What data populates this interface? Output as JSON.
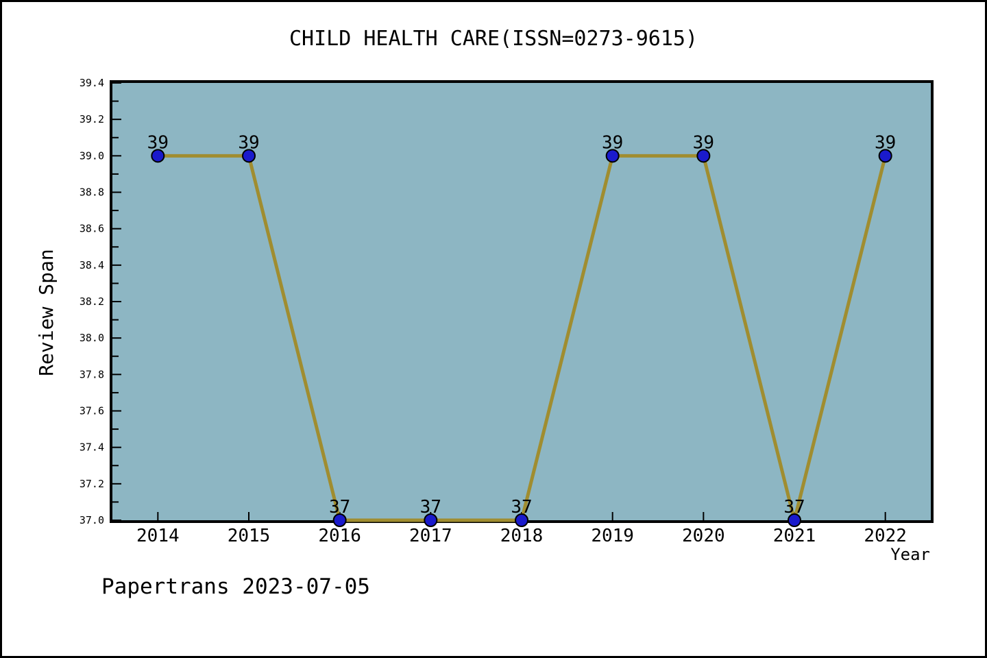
{
  "watermark": "Papertrans 2023-07-05",
  "chart_data": {
    "type": "line",
    "title": "CHILD HEALTH CARE(ISSN=0273-9615)",
    "xlabel": "Year",
    "ylabel": "Review Span",
    "x": [
      2014,
      2015,
      2016,
      2017,
      2018,
      2019,
      2020,
      2021,
      2022
    ],
    "x_tick_labels": [
      "2014",
      "2015",
      "2016",
      "2017",
      "2018",
      "2019",
      "2020",
      "2021",
      "2022"
    ],
    "values": [
      39,
      39,
      37,
      37,
      37,
      39,
      39,
      37,
      39
    ],
    "point_labels": [
      "39",
      "39",
      "37",
      "37",
      "37",
      "39",
      "39",
      "37",
      "39"
    ],
    "xlim": [
      2013.5,
      2022.5
    ],
    "ylim": [
      37.0,
      39.4
    ],
    "y_tick_labels": [
      "37.0",
      "37.2",
      "37.4",
      "37.6",
      "37.8",
      "38.0",
      "38.2",
      "38.4",
      "38.6",
      "38.8",
      "39.0",
      "39.2",
      "39.4"
    ],
    "y_major_step": 0.2,
    "y_minor_step": 0.1,
    "grid": false,
    "legend": null,
    "colors": {
      "plot_bg": "#8DB6C3",
      "line": "#A08D30",
      "marker_fill": "#1A1ACC",
      "marker_edge": "#000000",
      "axis": "#000000",
      "text": "#000000",
      "page_bg": "#FFFFFF",
      "page_border": "#000000"
    }
  }
}
